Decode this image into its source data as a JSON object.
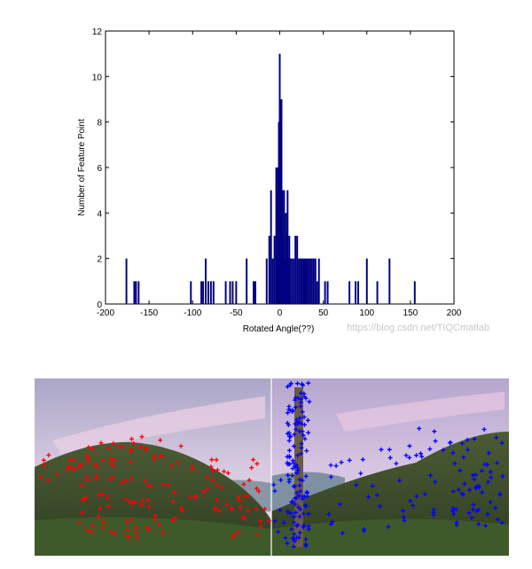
{
  "chart_data": {
    "type": "bar",
    "xlabel": "Rotated Angle(??)",
    "ylabel": "Number of Feature Point",
    "xlim": [
      -200,
      200
    ],
    "ylim": [
      0,
      12
    ],
    "xticks": [
      -200,
      -150,
      -100,
      -50,
      0,
      50,
      100,
      150,
      200
    ],
    "yticks": [
      0,
      2,
      4,
      6,
      8,
      10,
      12
    ],
    "bar_color": "#000080",
    "series": [
      {
        "x": [
          -176,
          -167,
          -165,
          -162,
          -102,
          -90,
          -88,
          -85,
          -82,
          -79,
          -76,
          -62,
          -57,
          -54,
          -50,
          -38,
          -30,
          -28,
          -15,
          -12,
          -10,
          -8,
          -6,
          -4,
          -3,
          -2,
          -1,
          0,
          1,
          2,
          3,
          4,
          5,
          6,
          7,
          8,
          9,
          10,
          11,
          12,
          14,
          16,
          18,
          20,
          22,
          24,
          25,
          27,
          29,
          31,
          33,
          35,
          37,
          39,
          41,
          43,
          45,
          52,
          55,
          80,
          87,
          90,
          100,
          112,
          126,
          155
        ],
        "y": [
          2,
          1,
          1,
          1,
          1,
          1,
          1,
          2,
          1,
          1,
          1,
          1,
          1,
          1,
          1,
          2,
          1,
          1,
          2,
          3,
          5,
          2,
          3,
          6,
          5,
          6,
          8,
          11,
          7,
          9,
          5,
          3,
          5,
          2,
          4,
          3,
          5,
          2,
          3,
          2,
          2,
          2,
          3,
          3,
          2,
          2,
          2,
          2,
          2,
          2,
          2,
          2,
          2,
          2,
          2,
          1,
          2,
          1,
          1,
          1,
          1,
          1,
          2,
          1,
          2,
          1
        ]
      }
    ],
    "watermark": "https://blog.csdn.net/TIQCmatlab"
  },
  "photo": {
    "left_marker_color": "#ff0000",
    "right_marker_color": "#0000ff"
  }
}
